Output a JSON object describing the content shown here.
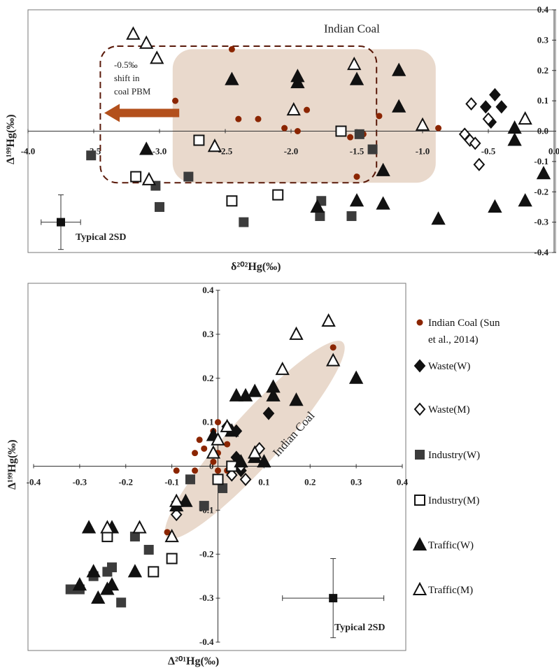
{
  "colors": {
    "coal_dot": "#8B2500",
    "filled": "#111111",
    "industry_w": "#3c3c3c",
    "coal_region": "#e9d9cc",
    "dashed_box": "#5a1a0a",
    "arrow": "#b3501c"
  },
  "legend": [
    {
      "key": "coal",
      "label": "Indian Coal (Sun et al., 2014)",
      "line1": "Indian Coal (Sun",
      "line2": "et al., 2014)"
    },
    {
      "key": "waste_w",
      "label": "Waste(W)"
    },
    {
      "key": "waste_m",
      "label": "Waste(M)"
    },
    {
      "key": "industry_w",
      "label": "Industry(W)"
    },
    {
      "key": "industry_m",
      "label": "Industry(M)"
    },
    {
      "key": "traffic_w",
      "label": "Traffic(W)"
    },
    {
      "key": "traffic_m",
      "label": "Traffic(M)"
    }
  ],
  "chart_data": [
    {
      "type": "scatter",
      "xlabel": "δ²⁰²Hg(‰)",
      "ylabel": "Δ¹⁹⁹Hg(‰)",
      "xlim": [
        -4.0,
        0.0
      ],
      "ylim": [
        -0.4,
        0.4
      ],
      "x_ticks": [
        "-4.0",
        "-3.5",
        "-3.0",
        "-2.5",
        "-2.0",
        "-1.5",
        "-1.0",
        "-0.5",
        "0.0"
      ],
      "y_ticks": [
        "0.4",
        "0.3",
        "0.2",
        "0.1",
        "0.0",
        "-0.1",
        "-0.2",
        "-0.3",
        "-0.4"
      ],
      "annotations": {
        "region": "Indian Coal",
        "shift_line1": "-0.5‰",
        "shift_line2": "shift in",
        "shift_line3": "coal PBM",
        "error_label": "Typical 2SD"
      },
      "error_bar": {
        "x": -3.75,
        "y": -0.3,
        "xerr": 0.15,
        "yerr": 0.09
      },
      "coal_region": {
        "x": [
          -2.9,
          -0.9
        ],
        "y": [
          -0.17,
          0.27
        ]
      },
      "shift_box": {
        "x": [
          -3.45,
          -1.35
        ],
        "y": [
          -0.17,
          0.28
        ]
      },
      "series": [
        {
          "key": "coal",
          "name": "Indian Coal (Sun et al., 2014)",
          "points": [
            [
              -2.45,
              0.27
            ],
            [
              -2.88,
              0.1
            ],
            [
              -2.4,
              0.04
            ],
            [
              -2.25,
              0.04
            ],
            [
              -2.05,
              0.01
            ],
            [
              -1.95,
              0.0
            ],
            [
              -1.88,
              0.07
            ],
            [
              -1.55,
              -0.02
            ],
            [
              -1.45,
              -0.01
            ],
            [
              -1.33,
              0.05
            ],
            [
              -1.5,
              -0.15
            ],
            [
              -0.88,
              0.01
            ]
          ]
        },
        {
          "key": "waste_w",
          "name": "Waste(W)",
          "points": [
            [
              -0.45,
              0.12
            ],
            [
              -0.52,
              0.08
            ],
            [
              -0.4,
              0.08
            ],
            [
              -0.48,
              0.03
            ]
          ]
        },
        {
          "key": "waste_m",
          "name": "Waste(M)",
          "points": [
            [
              -0.63,
              0.09
            ],
            [
              -0.68,
              -0.01
            ],
            [
              -0.64,
              -0.03
            ],
            [
              -0.6,
              -0.04
            ],
            [
              -0.5,
              0.04
            ],
            [
              -0.57,
              -0.11
            ]
          ]
        },
        {
          "key": "industry_w",
          "name": "Industry(W)",
          "points": [
            [
              -3.52,
              -0.08
            ],
            [
              -3.03,
              -0.18
            ],
            [
              -3.0,
              -0.25
            ],
            [
              -2.78,
              -0.15
            ],
            [
              -2.36,
              -0.3
            ],
            [
              -1.78,
              -0.28
            ],
            [
              -1.77,
              -0.23
            ],
            [
              -1.54,
              -0.28
            ],
            [
              -1.48,
              -0.01
            ],
            [
              -1.38,
              -0.06
            ]
          ]
        },
        {
          "key": "industry_m",
          "name": "Industry(M)",
          "points": [
            [
              -3.18,
              -0.15
            ],
            [
              -2.7,
              -0.03
            ],
            [
              -2.45,
              -0.23
            ],
            [
              -2.1,
              -0.21
            ],
            [
              -1.62,
              0.0
            ]
          ]
        },
        {
          "key": "traffic_w",
          "name": "Traffic(W)",
          "points": [
            [
              -3.1,
              -0.06
            ],
            [
              -2.45,
              0.17
            ],
            [
              -1.95,
              0.16
            ],
            [
              -1.95,
              0.18
            ],
            [
              -1.8,
              -0.25
            ],
            [
              -1.5,
              0.17
            ],
            [
              -1.5,
              -0.23
            ],
            [
              -1.3,
              -0.13
            ],
            [
              -1.18,
              0.08
            ],
            [
              -1.18,
              0.2
            ],
            [
              -1.3,
              -0.24
            ],
            [
              -0.88,
              -0.29
            ],
            [
              -0.45,
              -0.25
            ],
            [
              -0.3,
              0.01
            ],
            [
              -0.3,
              -0.03
            ],
            [
              -0.22,
              -0.23
            ],
            [
              -0.08,
              -0.14
            ]
          ]
        },
        {
          "key": "traffic_m",
          "name": "Traffic(M)",
          "points": [
            [
              -3.2,
              0.32
            ],
            [
              -3.1,
              0.29
            ],
            [
              -3.02,
              0.24
            ],
            [
              -3.08,
              -0.16
            ],
            [
              -2.58,
              -0.05
            ],
            [
              -1.98,
              0.07
            ],
            [
              -1.52,
              0.22
            ],
            [
              -1.0,
              0.02
            ],
            [
              -0.22,
              0.04
            ]
          ]
        }
      ]
    },
    {
      "type": "scatter",
      "xlabel": "Δ²⁰¹Hg(‰)",
      "ylabel": "Δ¹⁹⁹Hg(‰)",
      "xlim": [
        -0.4,
        0.4
      ],
      "ylim": [
        -0.4,
        0.4
      ],
      "x_ticks": [
        "-0.4",
        "-0.3",
        "-0.2",
        "-0.1",
        "0",
        "0.1",
        "0.2",
        "0.3",
        "0.4"
      ],
      "y_ticks": [
        "0.4",
        "0.3",
        "0.2",
        "0.1",
        "0",
        "-0.1",
        "-0.2",
        "-0.3",
        "-0.4"
      ],
      "annotations": {
        "region": "Indian Coal",
        "error_label": "Typical 2SD"
      },
      "error_bar": {
        "x": 0.25,
        "y": -0.3,
        "xerr": 0.11,
        "yerr": 0.09
      },
      "coal_region": {
        "center": [
          0.08,
          0.06
        ],
        "rx": 0.285,
        "ry": 0.055,
        "angle_deg": 48
      },
      "series": [
        {
          "key": "coal",
          "name": "Indian Coal (Sun et al., 2014)",
          "points": [
            [
              0.25,
              0.27
            ],
            [
              0.0,
              0.1
            ],
            [
              -0.01,
              0.08
            ],
            [
              -0.04,
              0.06
            ],
            [
              -0.03,
              0.04
            ],
            [
              0.0,
              0.03
            ],
            [
              -0.01,
              0.01
            ],
            [
              0.02,
              0.05
            ],
            [
              0.0,
              -0.01
            ],
            [
              0.02,
              -0.01
            ],
            [
              -0.05,
              -0.01
            ],
            [
              -0.05,
              0.03
            ],
            [
              -0.09,
              -0.01
            ],
            [
              -0.11,
              -0.15
            ]
          ]
        },
        {
          "key": "waste_w",
          "name": "Waste(W)",
          "points": [
            [
              0.04,
              0.08
            ],
            [
              0.11,
              0.12
            ],
            [
              0.04,
              0.02
            ],
            [
              0.05,
              -0.01
            ]
          ]
        },
        {
          "key": "waste_m",
          "name": "Waste(M)",
          "points": [
            [
              0.02,
              0.09
            ],
            [
              0.09,
              0.04
            ],
            [
              0.05,
              0.0
            ],
            [
              0.03,
              -0.02
            ],
            [
              0.06,
              -0.03
            ],
            [
              -0.09,
              -0.11
            ]
          ]
        },
        {
          "key": "industry_w",
          "name": "Industry(W)",
          "points": [
            [
              -0.32,
              -0.28
            ],
            [
              -0.3,
              -0.28
            ],
            [
              -0.27,
              -0.25
            ],
            [
              -0.24,
              -0.24
            ],
            [
              -0.23,
              -0.23
            ],
            [
              -0.21,
              -0.31
            ],
            [
              -0.18,
              -0.16
            ],
            [
              -0.15,
              -0.19
            ],
            [
              -0.09,
              -0.09
            ],
            [
              -0.06,
              -0.03
            ],
            [
              -0.03,
              -0.09
            ],
            [
              0.01,
              -0.05
            ]
          ]
        },
        {
          "key": "industry_m",
          "name": "Industry(M)",
          "points": [
            [
              -0.24,
              -0.16
            ],
            [
              -0.14,
              -0.24
            ],
            [
              -0.1,
              -0.21
            ],
            [
              0.0,
              -0.03
            ],
            [
              0.03,
              0.0
            ]
          ]
        },
        {
          "key": "traffic_w",
          "name": "Traffic(W)",
          "points": [
            [
              -0.28,
              -0.14
            ],
            [
              -0.23,
              -0.14
            ],
            [
              -0.3,
              -0.27
            ],
            [
              -0.27,
              -0.24
            ],
            [
              -0.24,
              -0.28
            ],
            [
              -0.26,
              -0.3
            ],
            [
              -0.23,
              -0.27
            ],
            [
              -0.18,
              -0.24
            ],
            [
              -0.09,
              -0.09
            ],
            [
              -0.07,
              -0.08
            ],
            [
              -0.01,
              0.07
            ],
            [
              0.04,
              0.16
            ],
            [
              0.06,
              0.16
            ],
            [
              0.08,
              0.17
            ],
            [
              0.12,
              0.16
            ],
            [
              0.12,
              0.18
            ],
            [
              0.17,
              0.15
            ],
            [
              0.3,
              0.2
            ],
            [
              0.03,
              0.08
            ],
            [
              0.05,
              0.01
            ],
            [
              0.1,
              0.01
            ],
            [
              0.08,
              0.02
            ]
          ]
        },
        {
          "key": "traffic_m",
          "name": "Traffic(M)",
          "points": [
            [
              -0.24,
              -0.14
            ],
            [
              -0.17,
              -0.14
            ],
            [
              -0.1,
              -0.16
            ],
            [
              -0.09,
              -0.08
            ],
            [
              -0.01,
              0.03
            ],
            [
              0.0,
              0.06
            ],
            [
              0.02,
              0.09
            ],
            [
              0.08,
              0.03
            ],
            [
              0.14,
              0.22
            ],
            [
              0.17,
              0.3
            ],
            [
              0.24,
              0.33
            ],
            [
              0.25,
              0.24
            ]
          ]
        }
      ]
    }
  ]
}
